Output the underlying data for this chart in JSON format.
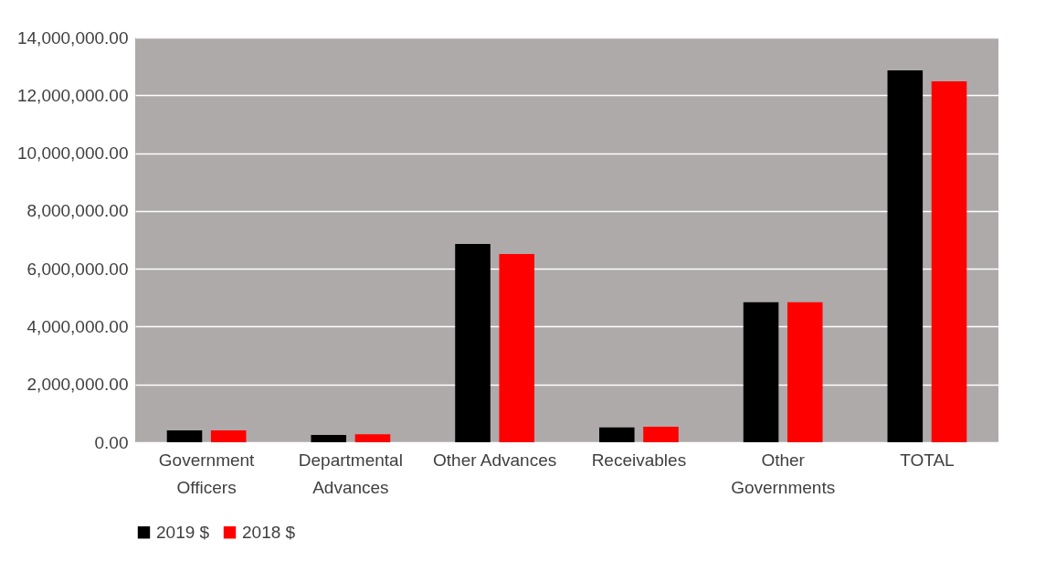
{
  "chart_data": {
    "type": "bar",
    "categories": [
      "Government Officers",
      "Departmental Advances",
      "Other Advances",
      "Receivables",
      "Other Governments",
      "TOTAL"
    ],
    "series": [
      {
        "name": "2019 $",
        "color": "#000000",
        "values": [
          410000,
          250000,
          6860000,
          510000,
          4840000,
          12860000
        ]
      },
      {
        "name": "2018 $",
        "color": "#ff0000",
        "values": [
          410000,
          280000,
          6510000,
          540000,
          4840000,
          12480000
        ]
      }
    ],
    "ylim": [
      0,
      14000000
    ],
    "yticks": [
      {
        "value": 0,
        "label": "0.00"
      },
      {
        "value": 2000000,
        "label": "2,000,000.00"
      },
      {
        "value": 4000000,
        "label": "4,000,000.00"
      },
      {
        "value": 6000000,
        "label": "6,000,000.00"
      },
      {
        "value": 8000000,
        "label": "8,000,000.00"
      },
      {
        "value": 10000000,
        "label": "10,000,000.00"
      },
      {
        "value": 12000000,
        "label": "12,000,000.00"
      },
      {
        "value": 14000000,
        "label": "14,000,000.00"
      }
    ],
    "grid": "y",
    "legend": "bottom"
  }
}
